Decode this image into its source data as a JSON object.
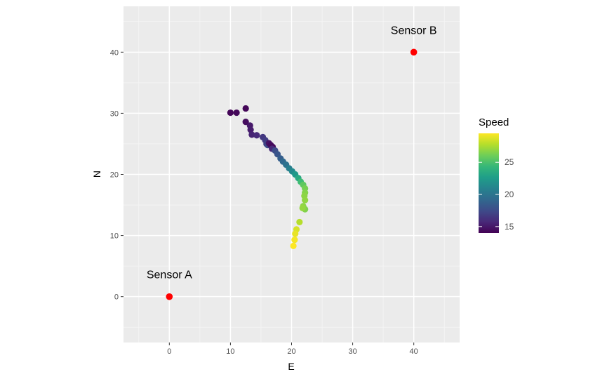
{
  "chart_data": {
    "type": "scatter",
    "title": "",
    "xlabel": "E",
    "ylabel": "N",
    "xlim": [
      -7.5,
      47.5
    ],
    "ylim": [
      -7.5,
      47.5
    ],
    "x_ticks": [
      0,
      10,
      20,
      30,
      40
    ],
    "y_ticks": [
      0,
      10,
      20,
      30,
      40
    ],
    "grid": true,
    "legend": {
      "title": "Speed",
      "placement": "right",
      "type": "colorbar",
      "range": [
        14,
        29.5
      ],
      "ticks": [
        15,
        20,
        25
      ],
      "colors": [
        "#440154",
        "#482878",
        "#3e4a89",
        "#31688e",
        "#26828e",
        "#1f9e89",
        "#35b779",
        "#6ece58",
        "#b5de2b",
        "#fde725"
      ]
    },
    "sensors": [
      {
        "label": "Sensor A",
        "x": 0,
        "y": 0,
        "color": "#ff0000"
      },
      {
        "label": "Sensor B",
        "x": 40,
        "y": 40,
        "color": "#ff0000"
      }
    ],
    "points": [
      {
        "x": 10.0,
        "y": 30.1,
        "speed": 14.2
      },
      {
        "x": 11.0,
        "y": 30.1,
        "speed": 14.3
      },
      {
        "x": 12.5,
        "y": 30.8,
        "speed": 14.2
      },
      {
        "x": 12.5,
        "y": 28.6,
        "speed": 14.5
      },
      {
        "x": 13.2,
        "y": 28.0,
        "speed": 15.0
      },
      {
        "x": 13.3,
        "y": 27.3,
        "speed": 15.2
      },
      {
        "x": 13.5,
        "y": 26.5,
        "speed": 15.5
      },
      {
        "x": 14.3,
        "y": 26.4,
        "speed": 15.8
      },
      {
        "x": 15.3,
        "y": 26.1,
        "speed": 16.5
      },
      {
        "x": 15.7,
        "y": 25.6,
        "speed": 16.8
      },
      {
        "x": 15.9,
        "y": 25.0,
        "speed": 17.0
      },
      {
        "x": 16.1,
        "y": 24.8,
        "speed": 17.5
      },
      {
        "x": 16.3,
        "y": 25.1,
        "speed": 14.8
      },
      {
        "x": 16.6,
        "y": 24.8,
        "speed": 14.5
      },
      {
        "x": 16.9,
        "y": 24.5,
        "speed": 14.3
      },
      {
        "x": 16.8,
        "y": 24.2,
        "speed": 15.8
      },
      {
        "x": 17.3,
        "y": 23.9,
        "speed": 17.6
      },
      {
        "x": 17.7,
        "y": 23.3,
        "speed": 18.1
      },
      {
        "x": 18.2,
        "y": 22.6,
        "speed": 18.6
      },
      {
        "x": 18.6,
        "y": 22.1,
        "speed": 19.2
      },
      {
        "x": 19.1,
        "y": 21.6,
        "speed": 19.8
      },
      {
        "x": 19.6,
        "y": 21.0,
        "speed": 20.6
      },
      {
        "x": 20.1,
        "y": 20.5,
        "speed": 21.4
      },
      {
        "x": 20.6,
        "y": 20.0,
        "speed": 22.3
      },
      {
        "x": 21.1,
        "y": 19.4,
        "speed": 23.4
      },
      {
        "x": 21.5,
        "y": 18.8,
        "speed": 24.6
      },
      {
        "x": 21.9,
        "y": 18.3,
        "speed": 25.6
      },
      {
        "x": 22.2,
        "y": 17.7,
        "speed": 26.2
      },
      {
        "x": 22.2,
        "y": 17.0,
        "speed": 26.6
      },
      {
        "x": 22.1,
        "y": 16.5,
        "speed": 26.8
      },
      {
        "x": 22.2,
        "y": 15.8,
        "speed": 26.9
      },
      {
        "x": 21.9,
        "y": 14.8,
        "speed": 26.8
      },
      {
        "x": 22.2,
        "y": 14.3,
        "speed": 26.5
      },
      {
        "x": 21.8,
        "y": 14.5,
        "speed": 27.0
      },
      {
        "x": 21.3,
        "y": 12.2,
        "speed": 27.8
      },
      {
        "x": 20.8,
        "y": 11.0,
        "speed": 28.6
      },
      {
        "x": 20.6,
        "y": 10.3,
        "speed": 29.0
      },
      {
        "x": 20.5,
        "y": 9.3,
        "speed": 29.3
      },
      {
        "x": 20.3,
        "y": 8.3,
        "speed": 29.5
      }
    ]
  }
}
